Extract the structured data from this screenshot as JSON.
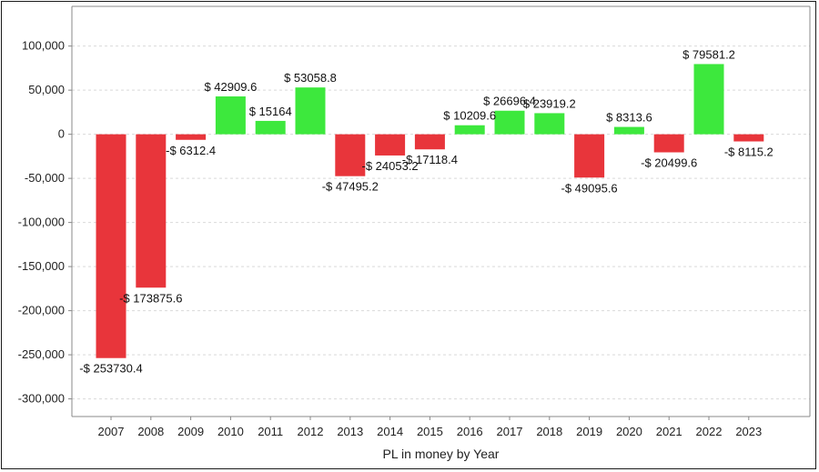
{
  "chart_data": {
    "type": "bar",
    "title": "",
    "xlabel": "PL in money by Year",
    "ylabel": "",
    "categories": [
      "2007",
      "2008",
      "2009",
      "2010",
      "2011",
      "2012",
      "2013",
      "2014",
      "2015",
      "2016",
      "2017",
      "2018",
      "2019",
      "2020",
      "2021",
      "2022",
      "2023"
    ],
    "values": [
      -253730.4,
      -173875.6,
      -6312.4,
      42909.6,
      15164,
      53058.8,
      -47495.2,
      -24053.2,
      -17118.4,
      10209.6,
      26696.4,
      23919.2,
      -49095.6,
      8313.6,
      -20499.6,
      79581.2,
      -8115.2
    ],
    "data_labels": [
      "-$ 253730.4",
      "-$ 173875.6",
      "-$ 6312.4",
      "$ 42909.6",
      "$ 15164",
      "$ 53058.8",
      "-$ 47495.2",
      "-$ 24053.2",
      "-$ 17118.4",
      "$ 10209.6",
      "$ 26696.4",
      "$ 23919.2",
      "-$ 49095.6",
      "$ 8313.6",
      "-$ 20499.6",
      "$ 79581.2",
      "-$ 8115.2"
    ],
    "y_ticks": [
      100000,
      50000,
      0,
      -50000,
      -100000,
      -150000,
      -200000,
      -250000,
      -300000
    ],
    "y_tick_labels": [
      "100,000",
      "50,000",
      "0",
      "-50,000",
      "-100,000",
      "-150,000",
      "-200,000",
      "-250,000",
      "-300,000"
    ],
    "ylim": [
      -320000,
      145000
    ],
    "grid": true,
    "legend": "none",
    "colors": {
      "positive": "#3de83d",
      "negative": "#e8353b",
      "grid": "#d9d9d9",
      "axis": "#888888"
    }
  }
}
